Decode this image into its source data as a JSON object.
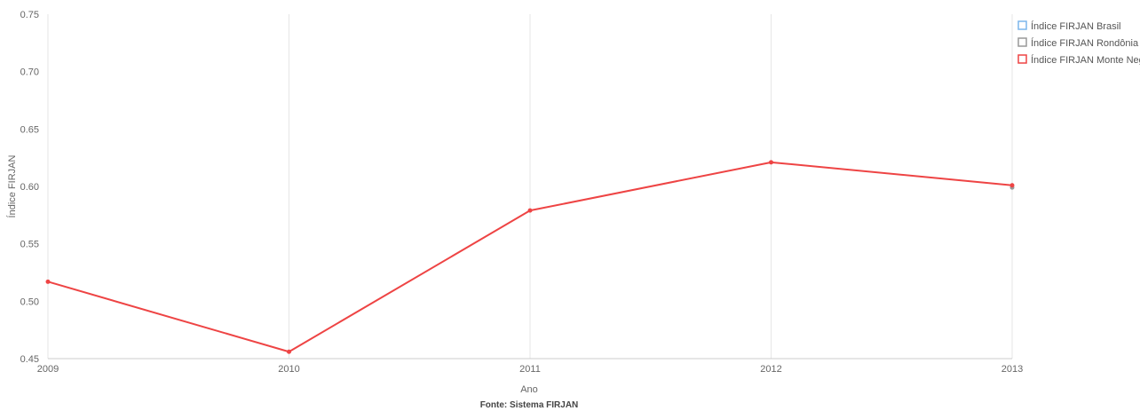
{
  "chart_data": {
    "type": "line",
    "x": [
      "2009",
      "2010",
      "2011",
      "2012",
      "2013"
    ],
    "xlabel": "Ano",
    "ylabel": "Índice FIRJAN",
    "ylim": [
      0.45,
      0.75
    ],
    "yticks": [
      "0.45",
      "0.50",
      "0.55",
      "0.60",
      "0.65",
      "0.70",
      "0.75"
    ],
    "grid": "vertical",
    "legend_position": "top-right",
    "source": "Fonte: Sistema FIRJAN",
    "series": [
      {
        "name": "Índice FIRJAN Brasil",
        "color": "#7cb5ec",
        "values": [
          null,
          null,
          null,
          null,
          null
        ]
      },
      {
        "name": "Índice FIRJAN Rondônia",
        "color": "#999999",
        "values": [
          null,
          null,
          null,
          null,
          0.599
        ]
      },
      {
        "name": "Índice FIRJAN Monte Negro",
        "color": "#ee4444",
        "values": [
          0.517,
          0.456,
          0.579,
          0.621,
          0.601
        ]
      }
    ]
  }
}
